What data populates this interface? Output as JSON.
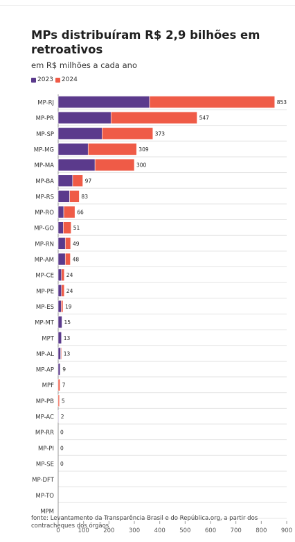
{
  "chart_data": {
    "type": "bar",
    "orientation": "horizontal",
    "stacked": true,
    "title": "MPs distribuíram R$ 2,9 bilhões em retroativos",
    "subtitle": "em R$ milhões a cada ano",
    "categories": [
      "MP-RJ",
      "MP-PR",
      "MP-SP",
      "MP-MG",
      "MP-MA",
      "MP-BA",
      "MP-RS",
      "MP-RO",
      "MP-GO",
      "MP-RN",
      "MP-AM",
      "MP-CE",
      "MP-PE",
      "MP-ES",
      "MP-MT",
      "MPT",
      "MP-AL",
      "MP-AP",
      "MPF",
      "MP-PB",
      "MP-AC",
      "MP-RR",
      "MP-PI",
      "MP-SE",
      "MP-DFT",
      "MP-TO",
      "MPM"
    ],
    "series": [
      {
        "name": "2023",
        "color": "#5b3a8c",
        "values": [
          360,
          208,
          173,
          118,
          145,
          57,
          45,
          22,
          20,
          28,
          28,
          13,
          13,
          12,
          15,
          13,
          10,
          8,
          0,
          0,
          2,
          0,
          0,
          0,
          0,
          0,
          0
        ]
      },
      {
        "name": "2024",
        "color": "#ef5b47",
        "values": [
          493,
          339,
          200,
          191,
          155,
          40,
          38,
          44,
          31,
          21,
          20,
          11,
          11,
          7,
          0,
          0,
          3,
          1,
          7,
          5,
          0,
          0,
          0,
          0,
          0,
          0,
          0
        ]
      }
    ],
    "totals": [
      "853",
      "547",
      "373",
      "309",
      "300",
      "97",
      "83",
      "66",
      "51",
      "49",
      "48",
      "24",
      "24",
      "19",
      "15",
      "13",
      "13",
      "9",
      "7",
      "5",
      "2",
      "0",
      "0",
      "0",
      "",
      "",
      ""
    ],
    "xlim": [
      0,
      900
    ],
    "xticks": [
      0,
      100,
      200,
      300,
      400,
      500,
      600,
      700,
      800,
      900
    ],
    "grid": true,
    "legend_position": "top-left",
    "source": "fonte: Levantamento da Transparência Brasil e do República.org, a partir dos contracheques dos órgãos"
  }
}
